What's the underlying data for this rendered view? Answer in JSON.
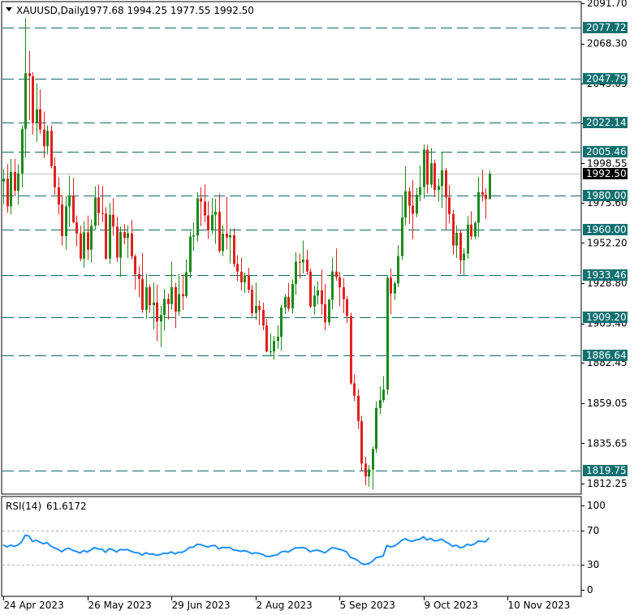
{
  "header": {
    "symbol": "XAUUSD,Daily",
    "ohlc": "1977.68 1994.25 1977.55 1992.50"
  },
  "rsi_header": {
    "label": "RSI(14)",
    "value": "61.6172"
  },
  "colors": {
    "up": "#1a8a1a",
    "down": "#e0201e",
    "level_line": "#0f6b6b",
    "level_label_bg": "#0f7070",
    "current_price_bg": "#000000",
    "rsi_line": "#1e90ff",
    "frame": "#000000"
  },
  "chart_data": [
    {
      "type": "candlestick",
      "title": "",
      "price_ticks": [
        "2091.70",
        "2068.30",
        "2045.05",
        "2021.85",
        "1998.55",
        "1975.60",
        "1952.20",
        "1928.80",
        "1905.40",
        "1882.45",
        "1859.05",
        "1835.65",
        "1812.25"
      ],
      "ylim": [
        1807,
        2091.7
      ],
      "x_labels": [
        "24 Apr 2023",
        "26 May 2023",
        "29 Jun 2023",
        "2 Aug 2023",
        "5 Sep 2023",
        "9 Oct 2023",
        "10 Nov 2023"
      ],
      "levels": [
        "2077.72",
        "2047.79",
        "2022.14",
        "2005.46",
        "1980.00",
        "1960.00",
        "1933.46",
        "1909.20",
        "1886.64",
        "1819.75"
      ],
      "current_price": "1992.50",
      "candles": [
        [
          1988.0,
          1995.1,
          1974.5,
          1989.6
        ],
        [
          1989.6,
          1998.0,
          1969.7,
          1973.5
        ],
        [
          1973.5,
          2001.1,
          1968.8,
          1993.5
        ],
        [
          1993.5,
          2001.1,
          1979.3,
          1982.6
        ],
        [
          1982.6,
          1997.8,
          1974.5,
          1992.7
        ],
        [
          1992.7,
          2020.6,
          1984.6,
          2018.6
        ],
        [
          2018.6,
          2083.0,
          2002.0,
          2051.0
        ],
        [
          2051.0,
          2064.1,
          2023.8,
          2049.2
        ],
        [
          2049.2,
          2051.6,
          2015.3,
          2021.9
        ],
        [
          2021.9,
          2045.1,
          2011.0,
          2030.0
        ],
        [
          2030.0,
          2041.6,
          2015.7,
          2018.2
        ],
        [
          2018.2,
          2028.6,
          2001.7,
          2008.5
        ],
        [
          2008.5,
          2020.7,
          2003.8,
          2017.5
        ],
        [
          2017.5,
          2020.5,
          1995.7,
          1996.9
        ],
        [
          1996.9,
          2002.0,
          1980.3,
          1984.6
        ],
        [
          1984.6,
          1990.5,
          1968.9,
          1974.6
        ],
        [
          1974.6,
          1980.2,
          1950.7,
          1956.2
        ],
        [
          1956.2,
          1979.5,
          1948.2,
          1973.5
        ],
        [
          1973.5,
          1991.3,
          1961.7,
          1979.7
        ],
        [
          1979.7,
          1990.0,
          1963.8,
          1964.2
        ],
        [
          1964.2,
          1968.2,
          1950.2,
          1957.7
        ],
        [
          1957.7,
          1962.2,
          1941.6,
          1943.1
        ],
        [
          1943.1,
          1964.9,
          1937.8,
          1958.4
        ],
        [
          1958.4,
          1968.2,
          1942.4,
          1948.3
        ],
        [
          1948.3,
          1965.9,
          1940.9,
          1962.2
        ],
        [
          1962.2,
          1985.2,
          1959.7,
          1978.7
        ],
        [
          1978.7,
          1986.1,
          1962.4,
          1969.6
        ],
        [
          1969.6,
          1985.3,
          1964.4,
          1969.3
        ],
        [
          1969.3,
          1973.1,
          1942.3,
          1943.1
        ],
        [
          1943.1,
          1975.5,
          1940.0,
          1968.6
        ],
        [
          1968.6,
          1978.2,
          1956.4,
          1961.8
        ],
        [
          1961.8,
          1967.5,
          1941.2,
          1943.7
        ],
        [
          1943.7,
          1961.8,
          1932.4,
          1958.6
        ],
        [
          1958.6,
          1963.1,
          1951.4,
          1955.1
        ],
        [
          1955.1,
          1962.4,
          1943.5,
          1957.8
        ],
        [
          1957.8,
          1965.6,
          1942.6,
          1944.4
        ],
        [
          1944.4,
          1945.7,
          1925.1,
          1934.0
        ],
        [
          1934.0,
          1938.8,
          1920.7,
          1931.3
        ],
        [
          1931.3,
          1946.4,
          1911.5,
          1913.3
        ],
        [
          1913.3,
          1934.2,
          1908.1,
          1926.4
        ],
        [
          1926.4,
          1928.1,
          1911.5,
          1916.0
        ],
        [
          1916.0,
          1929.0,
          1902.0,
          1917.5
        ],
        [
          1917.5,
          1928.0,
          1895.2,
          1906.5
        ],
        [
          1906.5,
          1915.6,
          1891.6,
          1910.3
        ],
        [
          1910.3,
          1925.4,
          1901.2,
          1919.7
        ],
        [
          1919.7,
          1922.8,
          1907.7,
          1916.6
        ],
        [
          1916.6,
          1941.4,
          1913.4,
          1926.5
        ],
        [
          1926.5,
          1929.0,
          1902.7,
          1912.2
        ],
        [
          1912.2,
          1934.1,
          1909.9,
          1922.4
        ],
        [
          1922.4,
          1933.9,
          1913.2,
          1921.3
        ],
        [
          1921.3,
          1942.6,
          1920.2,
          1935.2
        ],
        [
          1935.2,
          1958.9,
          1931.8,
          1955.9
        ],
        [
          1955.9,
          1964.3,
          1947.4,
          1956.6
        ],
        [
          1956.6,
          1981.8,
          1953.2,
          1978.1
        ],
        [
          1978.1,
          1984.6,
          1962.0,
          1976.3
        ],
        [
          1976.3,
          1986.3,
          1964.3,
          1968.2
        ],
        [
          1968.2,
          1976.5,
          1954.5,
          1959.5
        ],
        [
          1959.5,
          1978.3,
          1957.3,
          1968.6
        ],
        [
          1968.6,
          1977.8,
          1951.7,
          1970.3
        ],
        [
          1970.3,
          1980.8,
          1946.4,
          1947.5
        ],
        [
          1947.5,
          1962.5,
          1944.6,
          1957.6
        ],
        [
          1957.6,
          1979.1,
          1948.4,
          1955.4
        ],
        [
          1955.4,
          1960.5,
          1940.2,
          1956.7
        ],
        [
          1956.7,
          1960.7,
          1938.2,
          1940.0
        ],
        [
          1940.0,
          1945.0,
          1930.0,
          1935.5
        ],
        [
          1935.5,
          1943.6,
          1924.8,
          1929.3
        ],
        [
          1929.3,
          1935.0,
          1923.1,
          1933.3
        ],
        [
          1933.3,
          1937.7,
          1923.0,
          1925.0
        ],
        [
          1925.0,
          1927.8,
          1909.3,
          1911.4
        ],
        [
          1911.4,
          1929.3,
          1907.4,
          1915.6
        ],
        [
          1915.6,
          1918.8,
          1904.4,
          1913.2
        ],
        [
          1913.2,
          1917.5,
          1901.5,
          1904.2
        ],
        [
          1904.2,
          1907.9,
          1888.6,
          1889.1
        ],
        [
          1889.1,
          1899.6,
          1886.2,
          1889.1
        ],
        [
          1889.1,
          1898.1,
          1884.3,
          1895.2
        ],
        [
          1895.2,
          1904.3,
          1890.6,
          1897.6
        ],
        [
          1897.6,
          1916.0,
          1889.3,
          1914.6
        ],
        [
          1914.6,
          1922.6,
          1911.0,
          1920.8
        ],
        [
          1920.8,
          1929.0,
          1912.4,
          1914.1
        ],
        [
          1914.1,
          1931.0,
          1911.1,
          1928.3
        ],
        [
          1928.3,
          1946.9,
          1922.1,
          1941.2
        ],
        [
          1941.2,
          1946.0,
          1931.6,
          1940.9
        ],
        [
          1940.9,
          1953.6,
          1934.4,
          1942.6
        ],
        [
          1942.6,
          1948.3,
          1933.6,
          1935.6
        ],
        [
          1935.6,
          1937.3,
          1914.3,
          1915.2
        ],
        [
          1915.2,
          1927.3,
          1910.6,
          1921.6
        ],
        [
          1921.6,
          1929.9,
          1916.3,
          1924.6
        ],
        [
          1924.6,
          1936.7,
          1910.5,
          1916.6
        ],
        [
          1916.6,
          1928.4,
          1901.4,
          1906.0
        ],
        [
          1906.0,
          1919.8,
          1904.1,
          1919.2
        ],
        [
          1919.2,
          1943.6,
          1913.6,
          1935.6
        ],
        [
          1935.6,
          1949.0,
          1930.3,
          1932.3
        ],
        [
          1932.3,
          1935.4,
          1915.3,
          1926.4
        ],
        [
          1926.4,
          1931.8,
          1911.3,
          1919.5
        ],
        [
          1919.5,
          1921.5,
          1905.5,
          1909.8
        ],
        [
          1909.8,
          1911.5,
          1869.7,
          1870.5
        ],
        [
          1870.5,
          1875.8,
          1860.2,
          1863.3
        ],
        [
          1863.3,
          1867.2,
          1844.0,
          1848.5
        ],
        [
          1848.5,
          1851.6,
          1819.6,
          1823.8
        ],
        [
          1823.8,
          1827.8,
          1811.3,
          1816.3
        ],
        [
          1816.3,
          1823.0,
          1810.3,
          1820.4
        ],
        [
          1820.4,
          1833.9,
          1808.7,
          1832.3
        ],
        [
          1832.3,
          1860.0,
          1830.0,
          1856.1
        ],
        [
          1856.1,
          1868.8,
          1852.6,
          1860.8
        ],
        [
          1860.8,
          1874.7,
          1859.4,
          1866.9
        ],
        [
          1866.9,
          1933.4,
          1863.7,
          1932.0
        ],
        [
          1932.0,
          1937.3,
          1910.7,
          1922.8
        ],
        [
          1922.8,
          1930.0,
          1919.2,
          1928.7
        ],
        [
          1928.7,
          1950.9,
          1926.6,
          1944.6
        ],
        [
          1944.6,
          1979.1,
          1942.4,
          1967.0
        ],
        [
          1967.0,
          1997.0,
          1962.6,
          1982.3
        ],
        [
          1982.3,
          1984.6,
          1963.4,
          1973.9
        ],
        [
          1973.9,
          1988.8,
          1954.3,
          1969.2
        ],
        [
          1969.2,
          1984.3,
          1967.1,
          1980.2
        ],
        [
          1980.2,
          1997.3,
          1976.3,
          1984.7
        ],
        [
          1984.7,
          2009.5,
          1978.0,
          2006.5
        ],
        [
          2006.5,
          2009.2,
          1980.9,
          1986.2
        ],
        [
          1986.2,
          2007.4,
          1984.3,
          1998.6
        ],
        [
          1998.6,
          2000.7,
          1979.0,
          1983.1
        ],
        [
          1983.1,
          1989.8,
          1976.3,
          1985.3
        ],
        [
          1985.3,
          2004.9,
          1972.6,
          1994.5
        ],
        [
          1994.5,
          1995.8,
          1960.0,
          1978.7
        ],
        [
          1978.7,
          1986.0,
          1963.5,
          1969.0
        ],
        [
          1969.0,
          1971.4,
          1945.3,
          1950.7
        ],
        [
          1950.7,
          1962.5,
          1943.5,
          1958.1
        ],
        [
          1958.1,
          1959.8,
          1934.0,
          1942.1
        ],
        [
          1942.1,
          1949.2,
          1933.3,
          1946.0
        ],
        [
          1946.0,
          1967.8,
          1942.8,
          1962.9
        ],
        [
          1962.9,
          1970.6,
          1954.1,
          1956.0
        ],
        [
          1956.0,
          1964.8,
          1954.5,
          1964.0
        ],
        [
          1964.0,
          1990.8,
          1955.5,
          1981.8
        ],
        [
          1981.8,
          1994.6,
          1976.4,
          1980.3
        ],
        [
          1980.3,
          1984.0,
          1966.1,
          1977.7
        ],
        [
          1977.7,
          1994.3,
          1977.6,
          1992.5
        ]
      ]
    },
    {
      "type": "line",
      "title": "RSI(14)",
      "y_ticks": [
        "100",
        "70",
        "30",
        "0"
      ],
      "ylim": [
        0,
        100
      ],
      "guide_levels": [
        70,
        30
      ],
      "values": [
        53.3,
        50.9,
        52.9,
        51.6,
        53.0,
        56.5,
        64.5,
        63.9,
        57.4,
        58.8,
        56.5,
        54.6,
        56.1,
        51.9,
        49.7,
        48.0,
        45.1,
        48.3,
        49.3,
        46.8,
        45.7,
        43.6,
        46.5,
        44.8,
        47.5,
        50.1,
        48.4,
        48.4,
        44.4,
        48.8,
        47.6,
        44.8,
        47.9,
        47.3,
        47.8,
        45.7,
        44.2,
        43.8,
        41.2,
        43.9,
        42.3,
        42.6,
        40.9,
        41.8,
        43.6,
        43.1,
        45.0,
        42.6,
        44.6,
        44.4,
        46.9,
        50.4,
        50.5,
        53.9,
        53.6,
        52.2,
        50.7,
        52.3,
        52.6,
        48.6,
        50.4,
        50.0,
        50.2,
        47.4,
        46.7,
        45.7,
        46.5,
        45.2,
        42.9,
        43.8,
        43.4,
        41.9,
        39.6,
        39.6,
        40.8,
        41.3,
        44.7,
        45.9,
        44.7,
        47.4,
        49.9,
        49.8,
        50.2,
        48.8,
        45.1,
        46.5,
        47.1,
        45.7,
        43.8,
        46.8,
        50.0,
        49.3,
        48.1,
        46.8,
        45.0,
        38.5,
        37.3,
        35.0,
        31.3,
        30.2,
        31.2,
        33.7,
        38.1,
        39.0,
        40.2,
        52.5,
        50.8,
        51.8,
        54.6,
        58.4,
        60.6,
        58.5,
        57.4,
        59.2,
        59.8,
        63.0,
        59.0,
        61.0,
        58.2,
        58.5,
        60.2,
        57.0,
        55.0,
        51.5,
        53.0,
        50.0,
        50.8,
        54.0,
        52.8,
        54.3,
        57.8,
        57.5,
        57.0,
        61.6
      ]
    }
  ]
}
